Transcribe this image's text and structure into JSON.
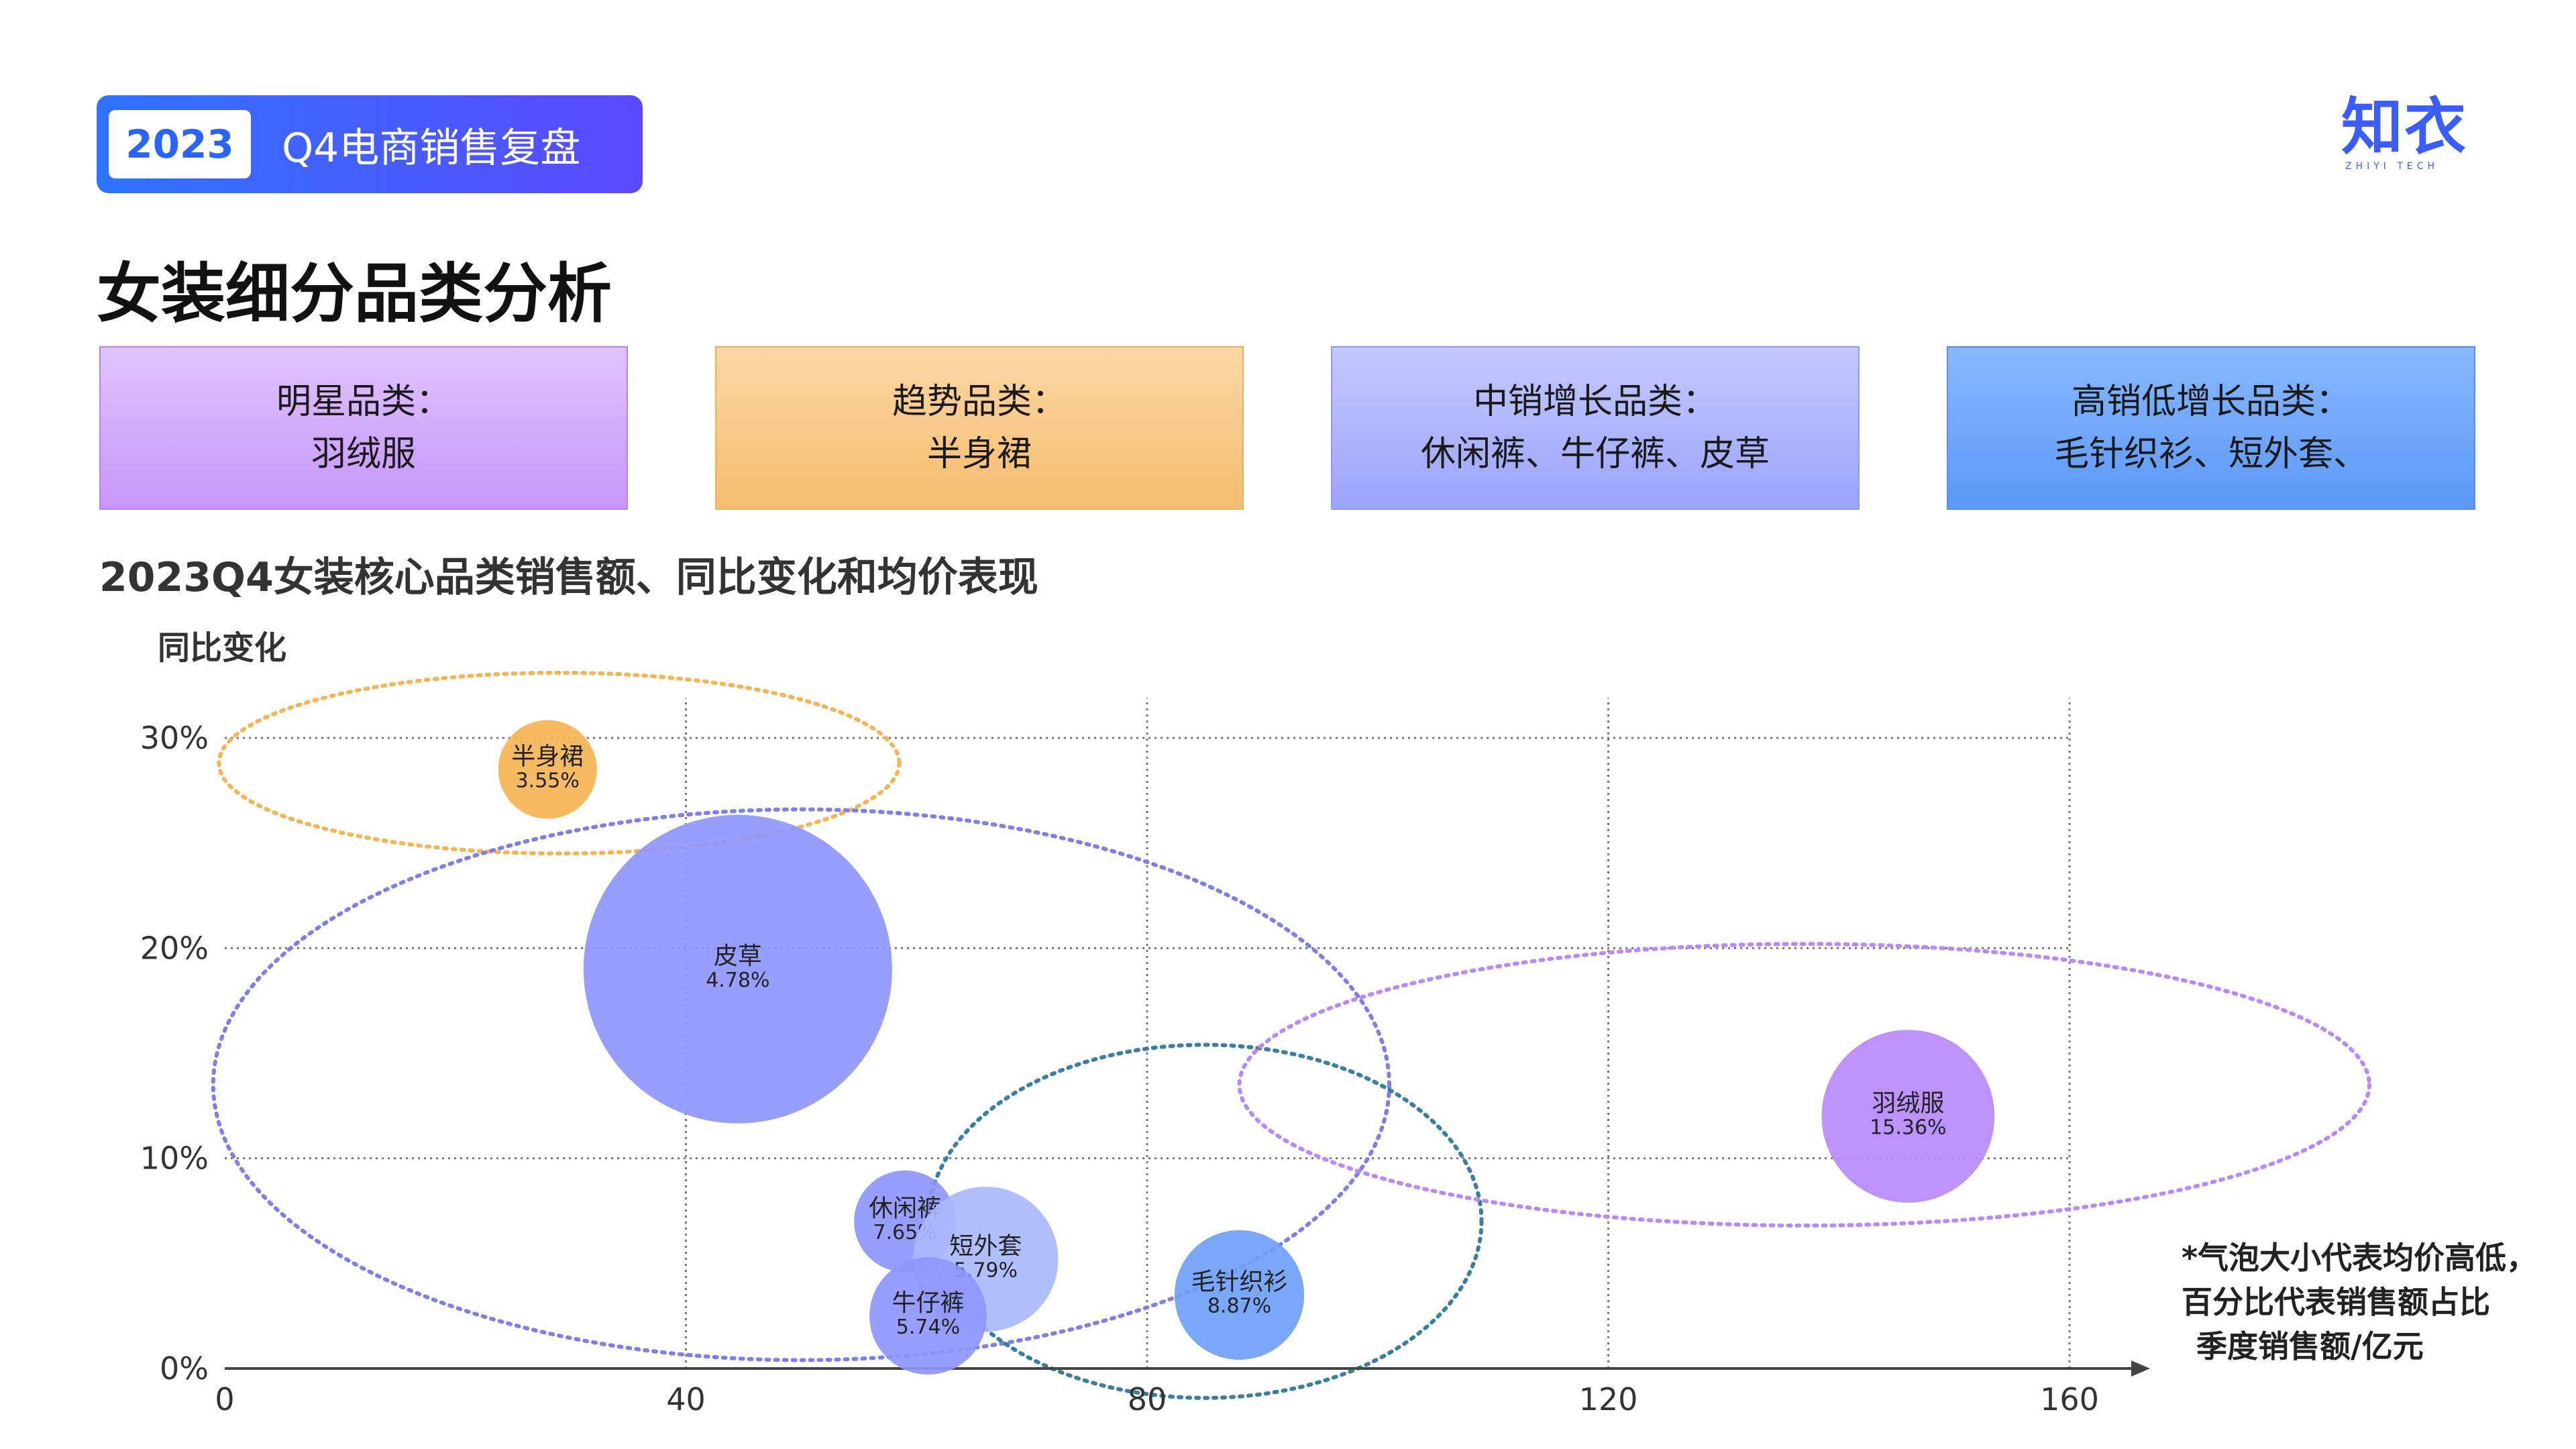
{
  "header": {
    "year": "2023",
    "title": "Q4电商销售复盘"
  },
  "logo": {
    "text": "知衣",
    "sub": "ZHIYI TECH"
  },
  "page_title": "女装细分品类分析",
  "cards": [
    {
      "title": "明星品类：",
      "items": "羽绒服"
    },
    {
      "title": "趋势品类：",
      "items": "半身裙"
    },
    {
      "title": "中销增长品类：",
      "items": "休闲裤、牛仔裤、皮草"
    },
    {
      "title": "高销低增长品类：",
      "items": "毛针织衫、短外套、"
    }
  ],
  "chart_title": "2023Q4女装核心品类销售额、同比变化和均价表现",
  "note": [
    "*气泡大小代表均价高低，",
    "百分比代表销售额占比",
    "季度销售额/亿元"
  ],
  "chart_data": {
    "type": "scatter",
    "subtype": "bubble",
    "xlabel": "",
    "ylabel": "同比变化",
    "xlim": [
      0,
      160
    ],
    "ylim": [
      0,
      30
    ],
    "x_ticks": [
      {
        "value": 0,
        "label": "0"
      },
      {
        "value": 40,
        "label": "40"
      },
      {
        "value": 80,
        "label": "80"
      },
      {
        "value": 120,
        "label": "120"
      },
      {
        "value": 160,
        "label": "160"
      }
    ],
    "y_ticks": [
      {
        "value": 0,
        "label": "0%"
      },
      {
        "value": 10,
        "label": "10%"
      },
      {
        "value": 20,
        "label": "20%"
      },
      {
        "value": 30,
        "label": "30%"
      }
    ],
    "grid": true,
    "points": [
      {
        "name": "半身裙",
        "share": "3.55%",
        "x": 28,
        "y": 28.5,
        "size": 0.32,
        "color": "#f5b456"
      },
      {
        "name": "皮草",
        "share": "4.78%",
        "x": 44.5,
        "y": 19,
        "size": 1.0,
        "color": "#8e96fb"
      },
      {
        "name": "休闲裤",
        "share": "7.65%",
        "x": 59,
        "y": 7,
        "size": 0.33,
        "color": "#8e96fb"
      },
      {
        "name": "短外套",
        "share": "5.79%",
        "x": 66,
        "y": 5.2,
        "size": 0.47,
        "color": "#aab9fc"
      },
      {
        "name": "牛仔裤",
        "share": "5.74%",
        "x": 61,
        "y": 2.5,
        "size": 0.38,
        "color": "#8e96fb"
      },
      {
        "name": "毛针织衫",
        "share": "8.87%",
        "x": 88,
        "y": 3.5,
        "size": 0.42,
        "color": "#6f9ff6"
      },
      {
        "name": "羽绒服",
        "share": "15.36%",
        "x": 146,
        "y": 12,
        "size": 0.56,
        "color": "#b889fb"
      }
    ],
    "groups": [
      {
        "cx": 29,
        "cy": 28.8,
        "rx": 29.5,
        "ry": 4.3,
        "color": "#f5b456"
      },
      {
        "cx": 50,
        "cy": 13.5,
        "rx": 51,
        "ry": 13.1,
        "color": "#7f7fe6"
      },
      {
        "cx": 85,
        "cy": 7,
        "rx": 24,
        "ry": 8.4,
        "color": "#3a7fa0"
      },
      {
        "cx": 137,
        "cy": 13.5,
        "rx": 49,
        "ry": 6.7,
        "color": "#b889fb"
      }
    ]
  }
}
